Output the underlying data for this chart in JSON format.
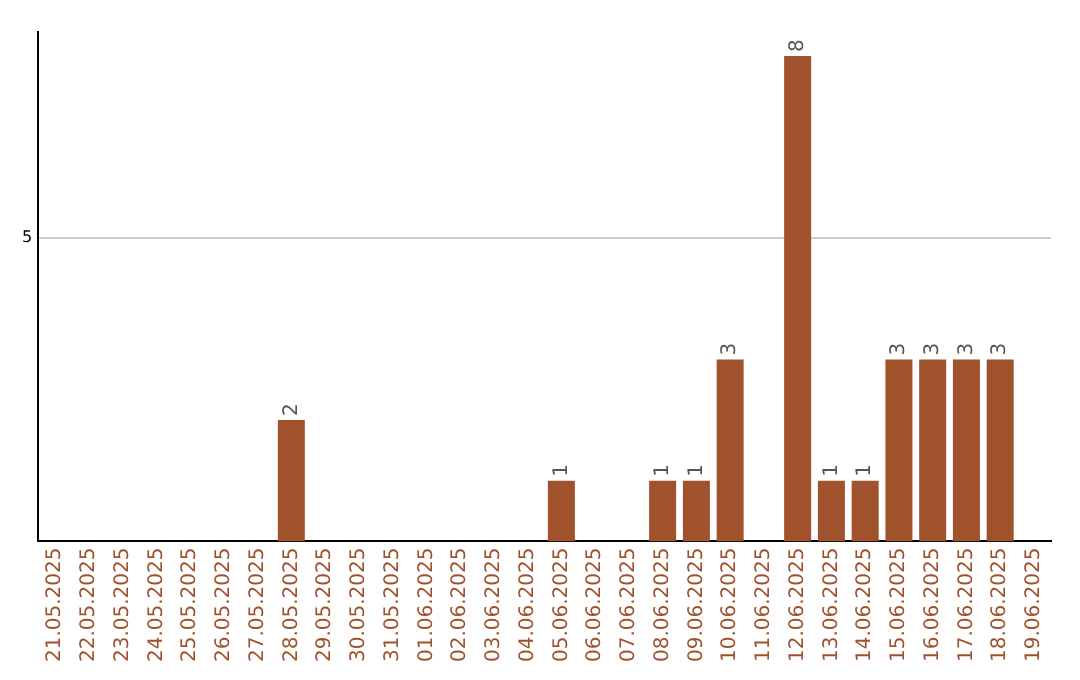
{
  "chart_data": {
    "type": "bar",
    "categories": [
      "21.05.2025",
      "22.05.2025",
      "23.05.2025",
      "24.05.2025",
      "25.05.2025",
      "26.05.2025",
      "27.05.2025",
      "28.05.2025",
      "29.05.2025",
      "30.05.2025",
      "31.05.2025",
      "01.06.2025",
      "02.06.2025",
      "03.06.2025",
      "04.06.2025",
      "05.06.2025",
      "06.06.2025",
      "07.06.2025",
      "08.06.2025",
      "09.06.2025",
      "10.06.2025",
      "11.06.2025",
      "12.06.2025",
      "13.06.2025",
      "14.06.2025",
      "15.06.2025",
      "16.06.2025",
      "17.06.2025",
      "18.06.2025",
      "19.06.2025"
    ],
    "values": [
      0,
      0,
      0,
      0,
      0,
      0,
      0,
      2,
      0,
      0,
      0,
      0,
      0,
      0,
      0,
      1,
      0,
      0,
      1,
      1,
      3,
      0,
      8,
      1,
      1,
      3,
      3,
      3,
      3,
      0
    ],
    "value_labels": [
      null,
      null,
      null,
      null,
      null,
      null,
      null,
      "2",
      null,
      null,
      null,
      null,
      null,
      null,
      null,
      "1",
      null,
      null,
      "1",
      "1",
      "3",
      null,
      "8",
      "1",
      "1",
      "3",
      "3",
      "3",
      "3",
      null
    ],
    "color": "#a0522d",
    "ylim": [
      0,
      8.4
    ],
    "yticks": [
      5
    ],
    "grid": "y",
    "legend": false
  }
}
